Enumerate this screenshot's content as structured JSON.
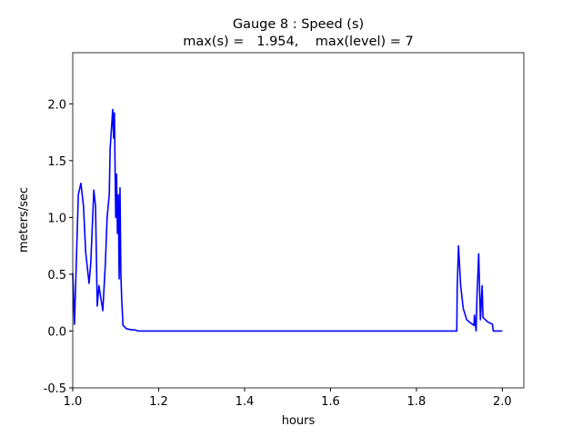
{
  "chart_data": {
    "type": "line",
    "title": [
      "Gauge 8 : Speed (s)",
      "max(s) =   1.954,    max(level) = 7"
    ],
    "xlabel": "hours",
    "ylabel": "meters/sec",
    "xlim": [
      1.0,
      2.05
    ],
    "ylim": [
      -0.5,
      2.45
    ],
    "xticks": [
      {
        "value": 1.0,
        "label": "1.0"
      },
      1.2,
      1.4,
      1.6,
      1.8,
      {
        "value": 2.0,
        "label": "2.0"
      }
    ],
    "yticks": [
      -0.5,
      {
        "value": 0.0,
        "label": "0.0"
      },
      0.5,
      {
        "value": 1.0,
        "label": "1.0"
      },
      1.5,
      {
        "value": 2.0,
        "label": "2.0"
      }
    ],
    "grid": false,
    "series": [
      {
        "color": "#0000ff",
        "x": [
          1.0,
          1.004,
          1.013,
          1.019,
          1.025,
          1.03,
          1.038,
          1.042,
          1.049,
          1.053,
          1.057,
          1.061,
          1.065,
          1.07,
          1.076,
          1.08,
          1.085,
          1.087,
          1.093,
          1.095,
          1.097,
          1.1,
          1.102,
          1.104,
          1.106,
          1.108,
          1.11,
          1.112,
          1.114,
          1.117,
          1.125,
          1.138,
          1.145,
          1.153,
          1.894,
          1.895,
          1.898,
          1.903,
          1.909,
          1.917,
          1.93,
          1.934,
          1.935,
          1.939,
          1.941,
          1.945,
          1.949,
          1.953,
          1.955,
          1.966,
          1.977,
          1.979,
          2.0
        ],
        "values": [
          0.51,
          0.06,
          1.2,
          1.3,
          1.1,
          0.7,
          0.42,
          0.6,
          1.24,
          1.1,
          0.22,
          0.4,
          0.3,
          0.18,
          0.6,
          1.0,
          1.2,
          1.6,
          1.95,
          1.7,
          1.92,
          1.0,
          1.38,
          0.86,
          1.2,
          0.46,
          1.26,
          0.5,
          0.28,
          0.05,
          0.02,
          0.01,
          0.01,
          0.0,
          0.0,
          0.38,
          0.75,
          0.4,
          0.2,
          0.1,
          0.06,
          0.05,
          0.14,
          0.0,
          0.3,
          0.68,
          0.1,
          0.4,
          0.12,
          0.08,
          0.06,
          0.0,
          0.0
        ]
      }
    ]
  }
}
